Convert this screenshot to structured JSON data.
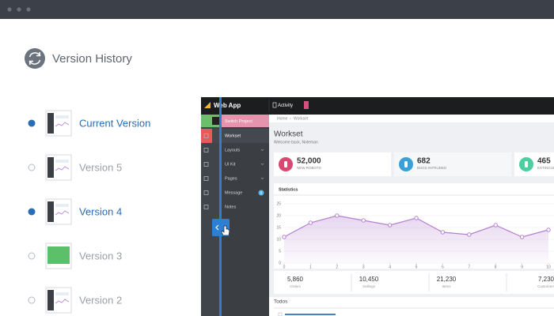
{
  "header": {
    "title": "Version History"
  },
  "versions": [
    {
      "label": "Current Version",
      "selected": true
    },
    {
      "label": "Version 5",
      "selected": false
    },
    {
      "label": "Version 4",
      "selected": true
    },
    {
      "label": "Version 3",
      "selected": false
    },
    {
      "label": "Version 2",
      "selected": false
    }
  ],
  "app": {
    "brand": "Web App",
    "nav": [
      "Activity"
    ],
    "switch_project": "Switch Project",
    "menu": [
      {
        "label": "Workset"
      },
      {
        "label": "Layouts"
      },
      {
        "label": "UI Kit"
      },
      {
        "label": "Pages"
      },
      {
        "label": "Message",
        "badge": 6
      },
      {
        "label": "Notes"
      }
    ],
    "breadcrumb": [
      "Home",
      "Workset"
    ],
    "page_title": "Workset",
    "welcome": "Welcome back, Noteman",
    "cards": [
      {
        "value": "52,000",
        "label": "NEW ROBOTS"
      },
      {
        "value": "682",
        "label": "BUGS INTRUDED"
      },
      {
        "value": "465",
        "label": "EXTINGUISHED"
      }
    ],
    "panel_title": "Statistics",
    "totals": [
      {
        "value": "5,860",
        "label": "Orders"
      },
      {
        "value": "10,450",
        "label": "Sellings"
      },
      {
        "value": "21,230",
        "label": "Items"
      },
      {
        "value": "7,230",
        "label": "Customers"
      }
    ],
    "todos": "Todos"
  },
  "chart_data": {
    "type": "line",
    "x": [
      0,
      1,
      2,
      3,
      4,
      5,
      6,
      7,
      8,
      9,
      10
    ],
    "values": [
      11,
      17,
      20,
      18,
      16,
      19,
      13,
      12,
      16,
      11,
      14
    ],
    "color": "#b57fcf",
    "xlim": [
      0,
      10
    ],
    "ylim": [
      0,
      25
    ],
    "xticks": [
      0,
      1,
      2,
      3,
      4,
      5,
      6,
      7,
      8,
      9,
      10
    ],
    "yticks": [
      0,
      5,
      10,
      15,
      20,
      25
    ],
    "grid": true
  }
}
